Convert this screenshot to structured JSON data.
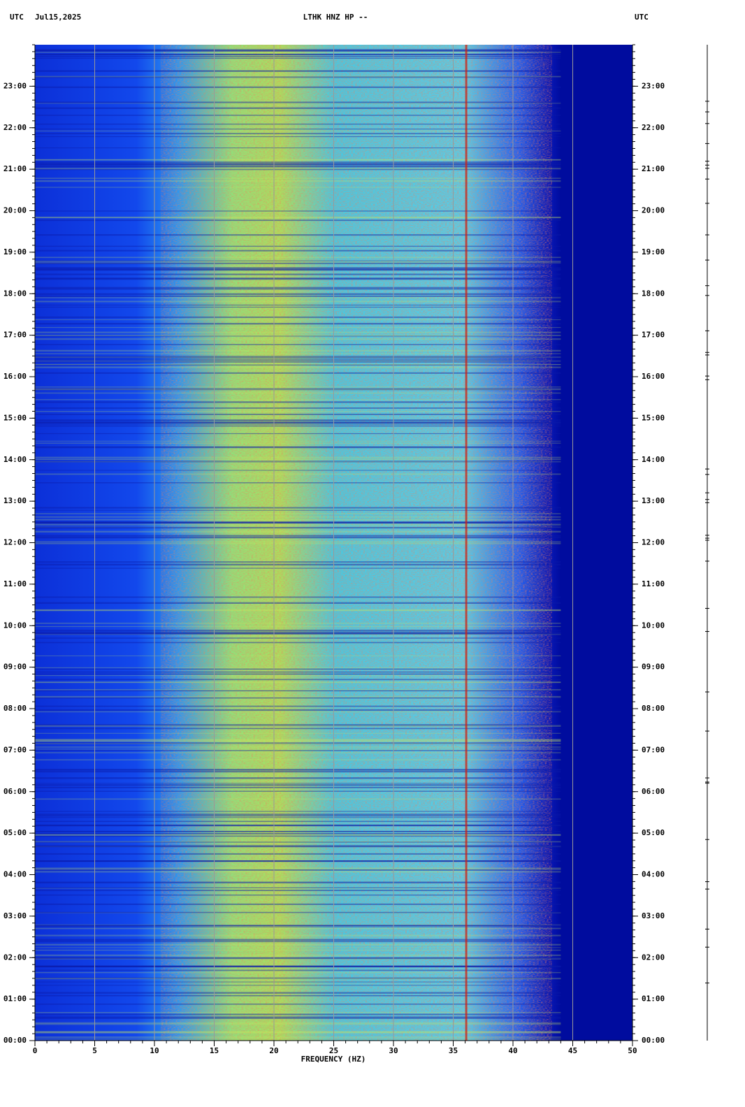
{
  "chart_data": {
    "type": "spectrogram",
    "header_left_zone": "UTC",
    "header_date": "Jul15,2025",
    "title": "LTHK HNZ HP --",
    "header_right_zone": "UTC",
    "xlabel": "FREQUENCY (HZ)",
    "xlim": [
      0,
      50
    ],
    "xticks": [
      0,
      5,
      10,
      15,
      20,
      25,
      30,
      35,
      40,
      45,
      50
    ],
    "ylim": [
      0,
      24
    ],
    "yticks": [
      {
        "value": 0,
        "label": "00:00"
      },
      {
        "value": 1,
        "label": "01:00"
      },
      {
        "value": 2,
        "label": "02:00"
      },
      {
        "value": 3,
        "label": "03:00"
      },
      {
        "value": 4,
        "label": "04:00"
      },
      {
        "value": 5,
        "label": "05:00"
      },
      {
        "value": 6,
        "label": "06:00"
      },
      {
        "value": 7,
        "label": "07:00"
      },
      {
        "value": 8,
        "label": "08:00"
      },
      {
        "value": 9,
        "label": "09:00"
      },
      {
        "value": 10,
        "label": "10:00"
      },
      {
        "value": 11,
        "label": "11:00"
      },
      {
        "value": 12,
        "label": "12:00"
      },
      {
        "value": 13,
        "label": "13:00"
      },
      {
        "value": 14,
        "label": "14:00"
      },
      {
        "value": 15,
        "label": "15:00"
      },
      {
        "value": 16,
        "label": "16:00"
      },
      {
        "value": 17,
        "label": "17:00"
      },
      {
        "value": 18,
        "label": "18:00"
      },
      {
        "value": 19,
        "label": "19:00"
      },
      {
        "value": 20,
        "label": "20:00"
      },
      {
        "value": 21,
        "label": "21:00"
      },
      {
        "value": 22,
        "label": "22:00"
      },
      {
        "value": 23,
        "label": "23:00"
      }
    ],
    "grid": true,
    "grid_color": "#999999"
  }
}
